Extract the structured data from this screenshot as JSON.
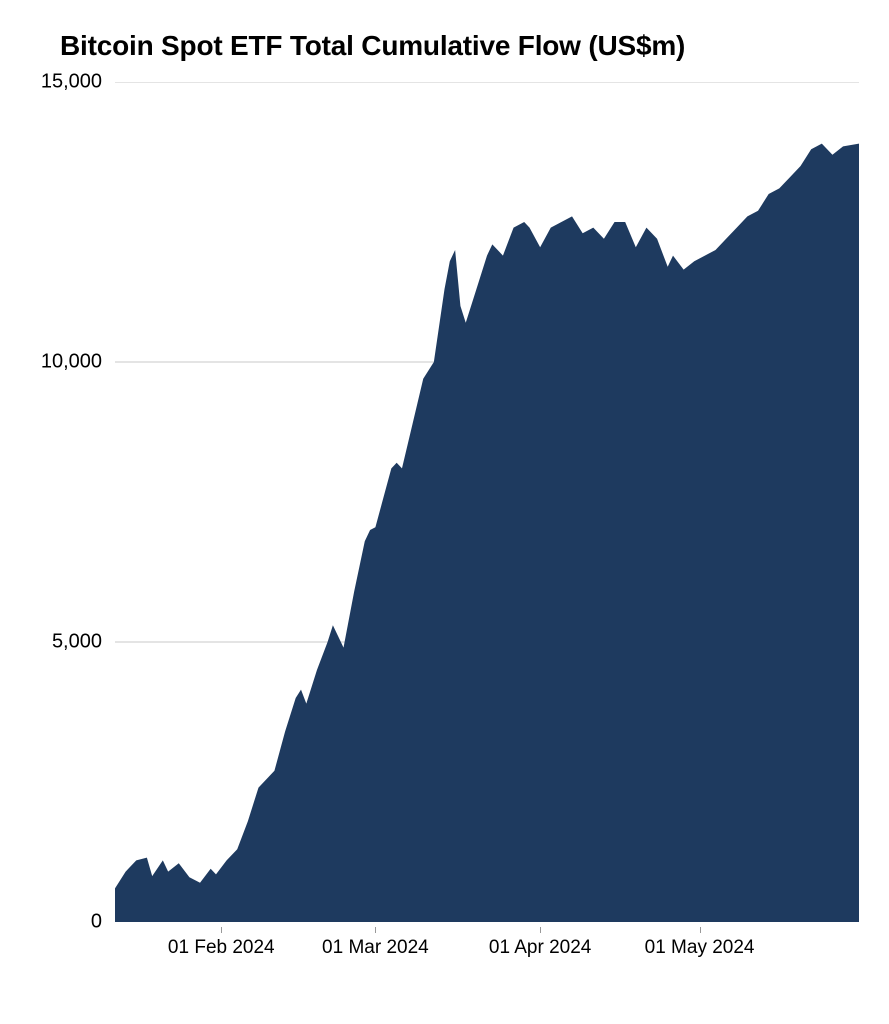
{
  "chart": {
    "type": "area",
    "title": "Bitcoin Spot ETF Total Cumulative Flow (US$m)",
    "title_fontsize": 28,
    "title_fontweight": 700,
    "title_color": "#000000",
    "background_color": "#ffffff",
    "fill_color": "#1e3a5f",
    "grid_color": "#c9c9c9",
    "axis_label_color": "#000000",
    "axis_label_fontsize": 20,
    "ylim": [
      0,
      15000
    ],
    "yticks": [
      {
        "value": 0,
        "label": "0"
      },
      {
        "value": 5000,
        "label": "5,000"
      },
      {
        "value": 10000,
        "label": "10,000"
      },
      {
        "value": 15000,
        "label": "15,000"
      }
    ],
    "x_domain_days": 140,
    "xticks": [
      {
        "day": 20,
        "label": "01 Feb 2024"
      },
      {
        "day": 49,
        "label": "01 Mar 2024"
      },
      {
        "day": 80,
        "label": "01 Apr 2024"
      },
      {
        "day": 110,
        "label": "01 May 2024"
      }
    ],
    "series": [
      {
        "x": 0,
        "y": 600
      },
      {
        "x": 2,
        "y": 900
      },
      {
        "x": 4,
        "y": 1100
      },
      {
        "x": 6,
        "y": 1150
      },
      {
        "x": 7,
        "y": 820
      },
      {
        "x": 9,
        "y": 1100
      },
      {
        "x": 10,
        "y": 900
      },
      {
        "x": 12,
        "y": 1050
      },
      {
        "x": 14,
        "y": 800
      },
      {
        "x": 16,
        "y": 700
      },
      {
        "x": 18,
        "y": 950
      },
      {
        "x": 19,
        "y": 850
      },
      {
        "x": 21,
        "y": 1100
      },
      {
        "x": 23,
        "y": 1300
      },
      {
        "x": 25,
        "y": 1800
      },
      {
        "x": 27,
        "y": 2400
      },
      {
        "x": 28,
        "y": 2500
      },
      {
        "x": 30,
        "y": 2700
      },
      {
        "x": 32,
        "y": 3400
      },
      {
        "x": 34,
        "y": 4000
      },
      {
        "x": 35,
        "y": 4150
      },
      {
        "x": 36,
        "y": 3900
      },
      {
        "x": 38,
        "y": 4500
      },
      {
        "x": 40,
        "y": 5000
      },
      {
        "x": 41,
        "y": 5300
      },
      {
        "x": 42,
        "y": 5100
      },
      {
        "x": 43,
        "y": 4900
      },
      {
        "x": 45,
        "y": 5900
      },
      {
        "x": 47,
        "y": 6800
      },
      {
        "x": 48,
        "y": 7000
      },
      {
        "x": 49,
        "y": 7050
      },
      {
        "x": 50,
        "y": 7400
      },
      {
        "x": 52,
        "y": 8100
      },
      {
        "x": 53,
        "y": 8200
      },
      {
        "x": 54,
        "y": 8100
      },
      {
        "x": 56,
        "y": 8900
      },
      {
        "x": 58,
        "y": 9700
      },
      {
        "x": 60,
        "y": 10000
      },
      {
        "x": 62,
        "y": 11300
      },
      {
        "x": 63,
        "y": 11800
      },
      {
        "x": 64,
        "y": 12000
      },
      {
        "x": 65,
        "y": 11000
      },
      {
        "x": 66,
        "y": 10700
      },
      {
        "x": 68,
        "y": 11300
      },
      {
        "x": 70,
        "y": 11900
      },
      {
        "x": 71,
        "y": 12100
      },
      {
        "x": 73,
        "y": 11900
      },
      {
        "x": 75,
        "y": 12400
      },
      {
        "x": 77,
        "y": 12500
      },
      {
        "x": 78,
        "y": 12400
      },
      {
        "x": 80,
        "y": 12050
      },
      {
        "x": 82,
        "y": 12400
      },
      {
        "x": 84,
        "y": 12500
      },
      {
        "x": 86,
        "y": 12600
      },
      {
        "x": 88,
        "y": 12300
      },
      {
        "x": 90,
        "y": 12400
      },
      {
        "x": 92,
        "y": 12200
      },
      {
        "x": 94,
        "y": 12500
      },
      {
        "x": 96,
        "y": 12500
      },
      {
        "x": 98,
        "y": 12050
      },
      {
        "x": 100,
        "y": 12400
      },
      {
        "x": 102,
        "y": 12200
      },
      {
        "x": 104,
        "y": 11700
      },
      {
        "x": 105,
        "y": 11900
      },
      {
        "x": 107,
        "y": 11650
      },
      {
        "x": 109,
        "y": 11800
      },
      {
        "x": 111,
        "y": 11900
      },
      {
        "x": 113,
        "y": 12000
      },
      {
        "x": 115,
        "y": 12200
      },
      {
        "x": 117,
        "y": 12400
      },
      {
        "x": 119,
        "y": 12600
      },
      {
        "x": 121,
        "y": 12700
      },
      {
        "x": 123,
        "y": 13000
      },
      {
        "x": 125,
        "y": 13100
      },
      {
        "x": 127,
        "y": 13300
      },
      {
        "x": 129,
        "y": 13500
      },
      {
        "x": 131,
        "y": 13800
      },
      {
        "x": 133,
        "y": 13900
      },
      {
        "x": 135,
        "y": 13700
      },
      {
        "x": 137,
        "y": 13850
      },
      {
        "x": 140,
        "y": 13900
      }
    ]
  }
}
